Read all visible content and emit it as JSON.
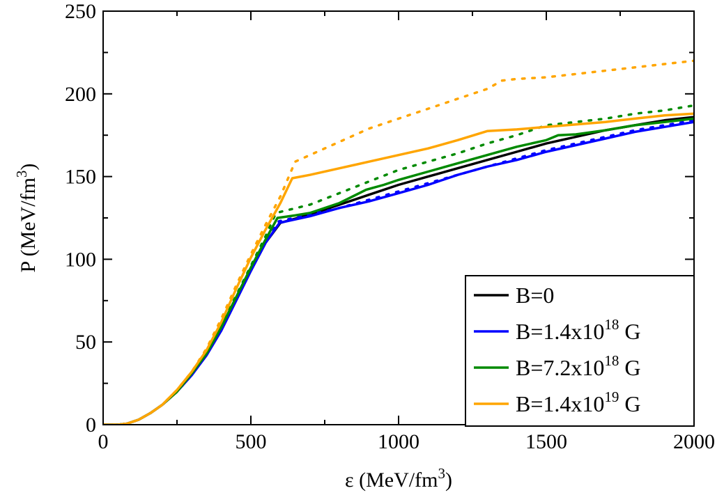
{
  "chart_data": {
    "type": "line",
    "title": "",
    "xlabel": {
      "main": "ε (MeV/fm",
      "sup": "3",
      "end": ")"
    },
    "ylabel": {
      "main": "P (MeV/fm",
      "sup": "3",
      "end": ")"
    },
    "xlim": [
      0,
      2000
    ],
    "ylim": [
      0,
      250
    ],
    "xticks": [
      0,
      500,
      1000,
      1500,
      2000
    ],
    "yticks": [
      0,
      50,
      100,
      150,
      200,
      250
    ],
    "x_minor_step": 250,
    "y_minor_step": 25,
    "grid": false,
    "legend_position": "bottom-right",
    "series": [
      {
        "name": "B=0",
        "legend_parts": {
          "main": "B=0",
          "sup": "",
          "end": ""
        },
        "color": "#000000",
        "style": "solid",
        "points": [
          [
            0,
            0
          ],
          [
            50,
            0
          ],
          [
            80,
            0.6
          ],
          [
            120,
            3
          ],
          [
            160,
            7
          ],
          [
            200,
            12
          ],
          [
            250,
            20
          ],
          [
            300,
            30
          ],
          [
            350,
            42
          ],
          [
            400,
            57
          ],
          [
            450,
            75
          ],
          [
            500,
            93
          ],
          [
            550,
            110
          ],
          [
            600,
            122
          ],
          [
            700,
            127
          ],
          [
            800,
            133
          ],
          [
            900,
            139
          ],
          [
            1000,
            145
          ],
          [
            1100,
            150
          ],
          [
            1200,
            155
          ],
          [
            1300,
            160
          ],
          [
            1400,
            165
          ],
          [
            1500,
            170
          ],
          [
            1600,
            174
          ],
          [
            1700,
            178
          ],
          [
            1800,
            181
          ],
          [
            1900,
            184
          ],
          [
            2000,
            186
          ]
        ]
      },
      {
        "name": "B=1.4x10^18 G (solid)",
        "legend_parts": {
          "main": "B=1.4x10",
          "sup": "18",
          "end": " G"
        },
        "color": "#0000ff",
        "style": "solid",
        "points": [
          [
            0,
            0
          ],
          [
            50,
            0
          ],
          [
            80,
            0.6
          ],
          [
            120,
            3
          ],
          [
            160,
            7
          ],
          [
            200,
            12
          ],
          [
            250,
            20
          ],
          [
            300,
            30
          ],
          [
            350,
            42
          ],
          [
            400,
            57
          ],
          [
            450,
            75
          ],
          [
            500,
            93
          ],
          [
            550,
            110
          ],
          [
            597,
            122
          ],
          [
            700,
            126
          ],
          [
            800,
            131
          ],
          [
            900,
            135
          ],
          [
            1000,
            140
          ],
          [
            1100,
            145
          ],
          [
            1200,
            151
          ],
          [
            1300,
            156
          ],
          [
            1400,
            160
          ],
          [
            1500,
            165
          ],
          [
            1600,
            169
          ],
          [
            1700,
            173
          ],
          [
            1800,
            177
          ],
          [
            1900,
            180
          ],
          [
            2000,
            183
          ]
        ]
      },
      {
        "name": "B=1.4x10^18 G (dotted)",
        "legend_parts": null,
        "color": "#0000ff",
        "style": "dotted",
        "points": [
          [
            0,
            0
          ],
          [
            50,
            0
          ],
          [
            80,
            0.6
          ],
          [
            120,
            3
          ],
          [
            160,
            7
          ],
          [
            200,
            12
          ],
          [
            250,
            20
          ],
          [
            300,
            30
          ],
          [
            350,
            43
          ],
          [
            400,
            58
          ],
          [
            450,
            76
          ],
          [
            500,
            94
          ],
          [
            550,
            111
          ],
          [
            595,
            123
          ],
          [
            700,
            127
          ],
          [
            800,
            131
          ],
          [
            900,
            136
          ],
          [
            1000,
            141
          ],
          [
            1100,
            146
          ],
          [
            1200,
            151
          ],
          [
            1300,
            156
          ],
          [
            1400,
            161
          ],
          [
            1500,
            166
          ],
          [
            1600,
            170
          ],
          [
            1700,
            174
          ],
          [
            1800,
            178
          ],
          [
            1900,
            181
          ],
          [
            2000,
            184
          ]
        ]
      },
      {
        "name": "B=7.2x10^18 G (solid)",
        "legend_parts": {
          "main": "B=7.2x10",
          "sup": "18",
          "end": " G"
        },
        "color": "#008a00",
        "style": "solid",
        "points": [
          [
            0,
            0
          ],
          [
            50,
            0
          ],
          [
            80,
            0.6
          ],
          [
            120,
            3
          ],
          [
            160,
            7
          ],
          [
            200,
            12
          ],
          [
            250,
            20
          ],
          [
            300,
            31
          ],
          [
            350,
            43
          ],
          [
            400,
            59
          ],
          [
            450,
            77
          ],
          [
            500,
            95
          ],
          [
            550,
            112
          ],
          [
            590,
            125
          ],
          [
            650,
            126.5
          ],
          [
            700,
            128
          ],
          [
            800,
            134
          ],
          [
            890,
            142
          ],
          [
            910,
            143
          ],
          [
            950,
            145
          ],
          [
            1000,
            148
          ],
          [
            1100,
            153
          ],
          [
            1200,
            158
          ],
          [
            1300,
            163
          ],
          [
            1400,
            168
          ],
          [
            1500,
            172
          ],
          [
            1540,
            175
          ],
          [
            1600,
            175.5
          ],
          [
            1700,
            178
          ],
          [
            1800,
            181
          ],
          [
            1900,
            183
          ],
          [
            2000,
            185
          ]
        ]
      },
      {
        "name": "B=7.2x10^18 G (dotted)",
        "legend_parts": null,
        "color": "#008a00",
        "style": "dotted",
        "points": [
          [
            0,
            0
          ],
          [
            50,
            0
          ],
          [
            80,
            0.6
          ],
          [
            120,
            3
          ],
          [
            160,
            7
          ],
          [
            200,
            12
          ],
          [
            250,
            20
          ],
          [
            300,
            31
          ],
          [
            350,
            44
          ],
          [
            400,
            60
          ],
          [
            450,
            78
          ],
          [
            500,
            96
          ],
          [
            550,
            114
          ],
          [
            585,
            128
          ],
          [
            700,
            133
          ],
          [
            800,
            140
          ],
          [
            900,
            147
          ],
          [
            1000,
            154
          ],
          [
            1100,
            159
          ],
          [
            1200,
            164
          ],
          [
            1300,
            170
          ],
          [
            1400,
            175
          ],
          [
            1500,
            181
          ],
          [
            1600,
            183
          ],
          [
            1700,
            185
          ],
          [
            1800,
            188
          ],
          [
            1900,
            190
          ],
          [
            2000,
            193
          ]
        ]
      },
      {
        "name": "B=1.4x10^19 G (solid)",
        "legend_parts": {
          "main": "B=1.4x10",
          "sup": "19",
          "end": " G"
        },
        "color": "#ffa500",
        "style": "solid",
        "points": [
          [
            0,
            0
          ],
          [
            50,
            0
          ],
          [
            80,
            0.6
          ],
          [
            120,
            3
          ],
          [
            160,
            7
          ],
          [
            200,
            12
          ],
          [
            250,
            21
          ],
          [
            300,
            32
          ],
          [
            350,
            45
          ],
          [
            400,
            62
          ],
          [
            450,
            82
          ],
          [
            500,
            101
          ],
          [
            550,
            118
          ],
          [
            600,
            134
          ],
          [
            640,
            149
          ],
          [
            700,
            151
          ],
          [
            800,
            155
          ],
          [
            900,
            159
          ],
          [
            1000,
            163
          ],
          [
            1100,
            167
          ],
          [
            1200,
            172
          ],
          [
            1300,
            177.5
          ],
          [
            1400,
            178.5
          ],
          [
            1500,
            180
          ],
          [
            1600,
            181.5
          ],
          [
            1700,
            183
          ],
          [
            1800,
            185
          ],
          [
            1900,
            187
          ],
          [
            2000,
            188
          ]
        ]
      },
      {
        "name": "B=1.4x10^19 G (dotted)",
        "legend_parts": null,
        "color": "#ffa500",
        "style": "dotted",
        "points": [
          [
            0,
            0
          ],
          [
            50,
            0
          ],
          [
            80,
            0.6
          ],
          [
            120,
            3
          ],
          [
            160,
            7
          ],
          [
            200,
            12
          ],
          [
            250,
            21
          ],
          [
            300,
            32
          ],
          [
            350,
            46
          ],
          [
            400,
            64
          ],
          [
            450,
            84
          ],
          [
            500,
            103
          ],
          [
            550,
            121
          ],
          [
            600,
            138
          ],
          [
            650,
            159
          ],
          [
            700,
            163
          ],
          [
            800,
            171
          ],
          [
            900,
            179
          ],
          [
            1000,
            185
          ],
          [
            1100,
            191
          ],
          [
            1200,
            197
          ],
          [
            1300,
            203
          ],
          [
            1350,
            208
          ],
          [
            1400,
            209
          ],
          [
            1500,
            210
          ],
          [
            1600,
            212
          ],
          [
            1700,
            214
          ],
          [
            1800,
            216
          ],
          [
            1900,
            218
          ],
          [
            2000,
            220
          ]
        ]
      }
    ]
  }
}
